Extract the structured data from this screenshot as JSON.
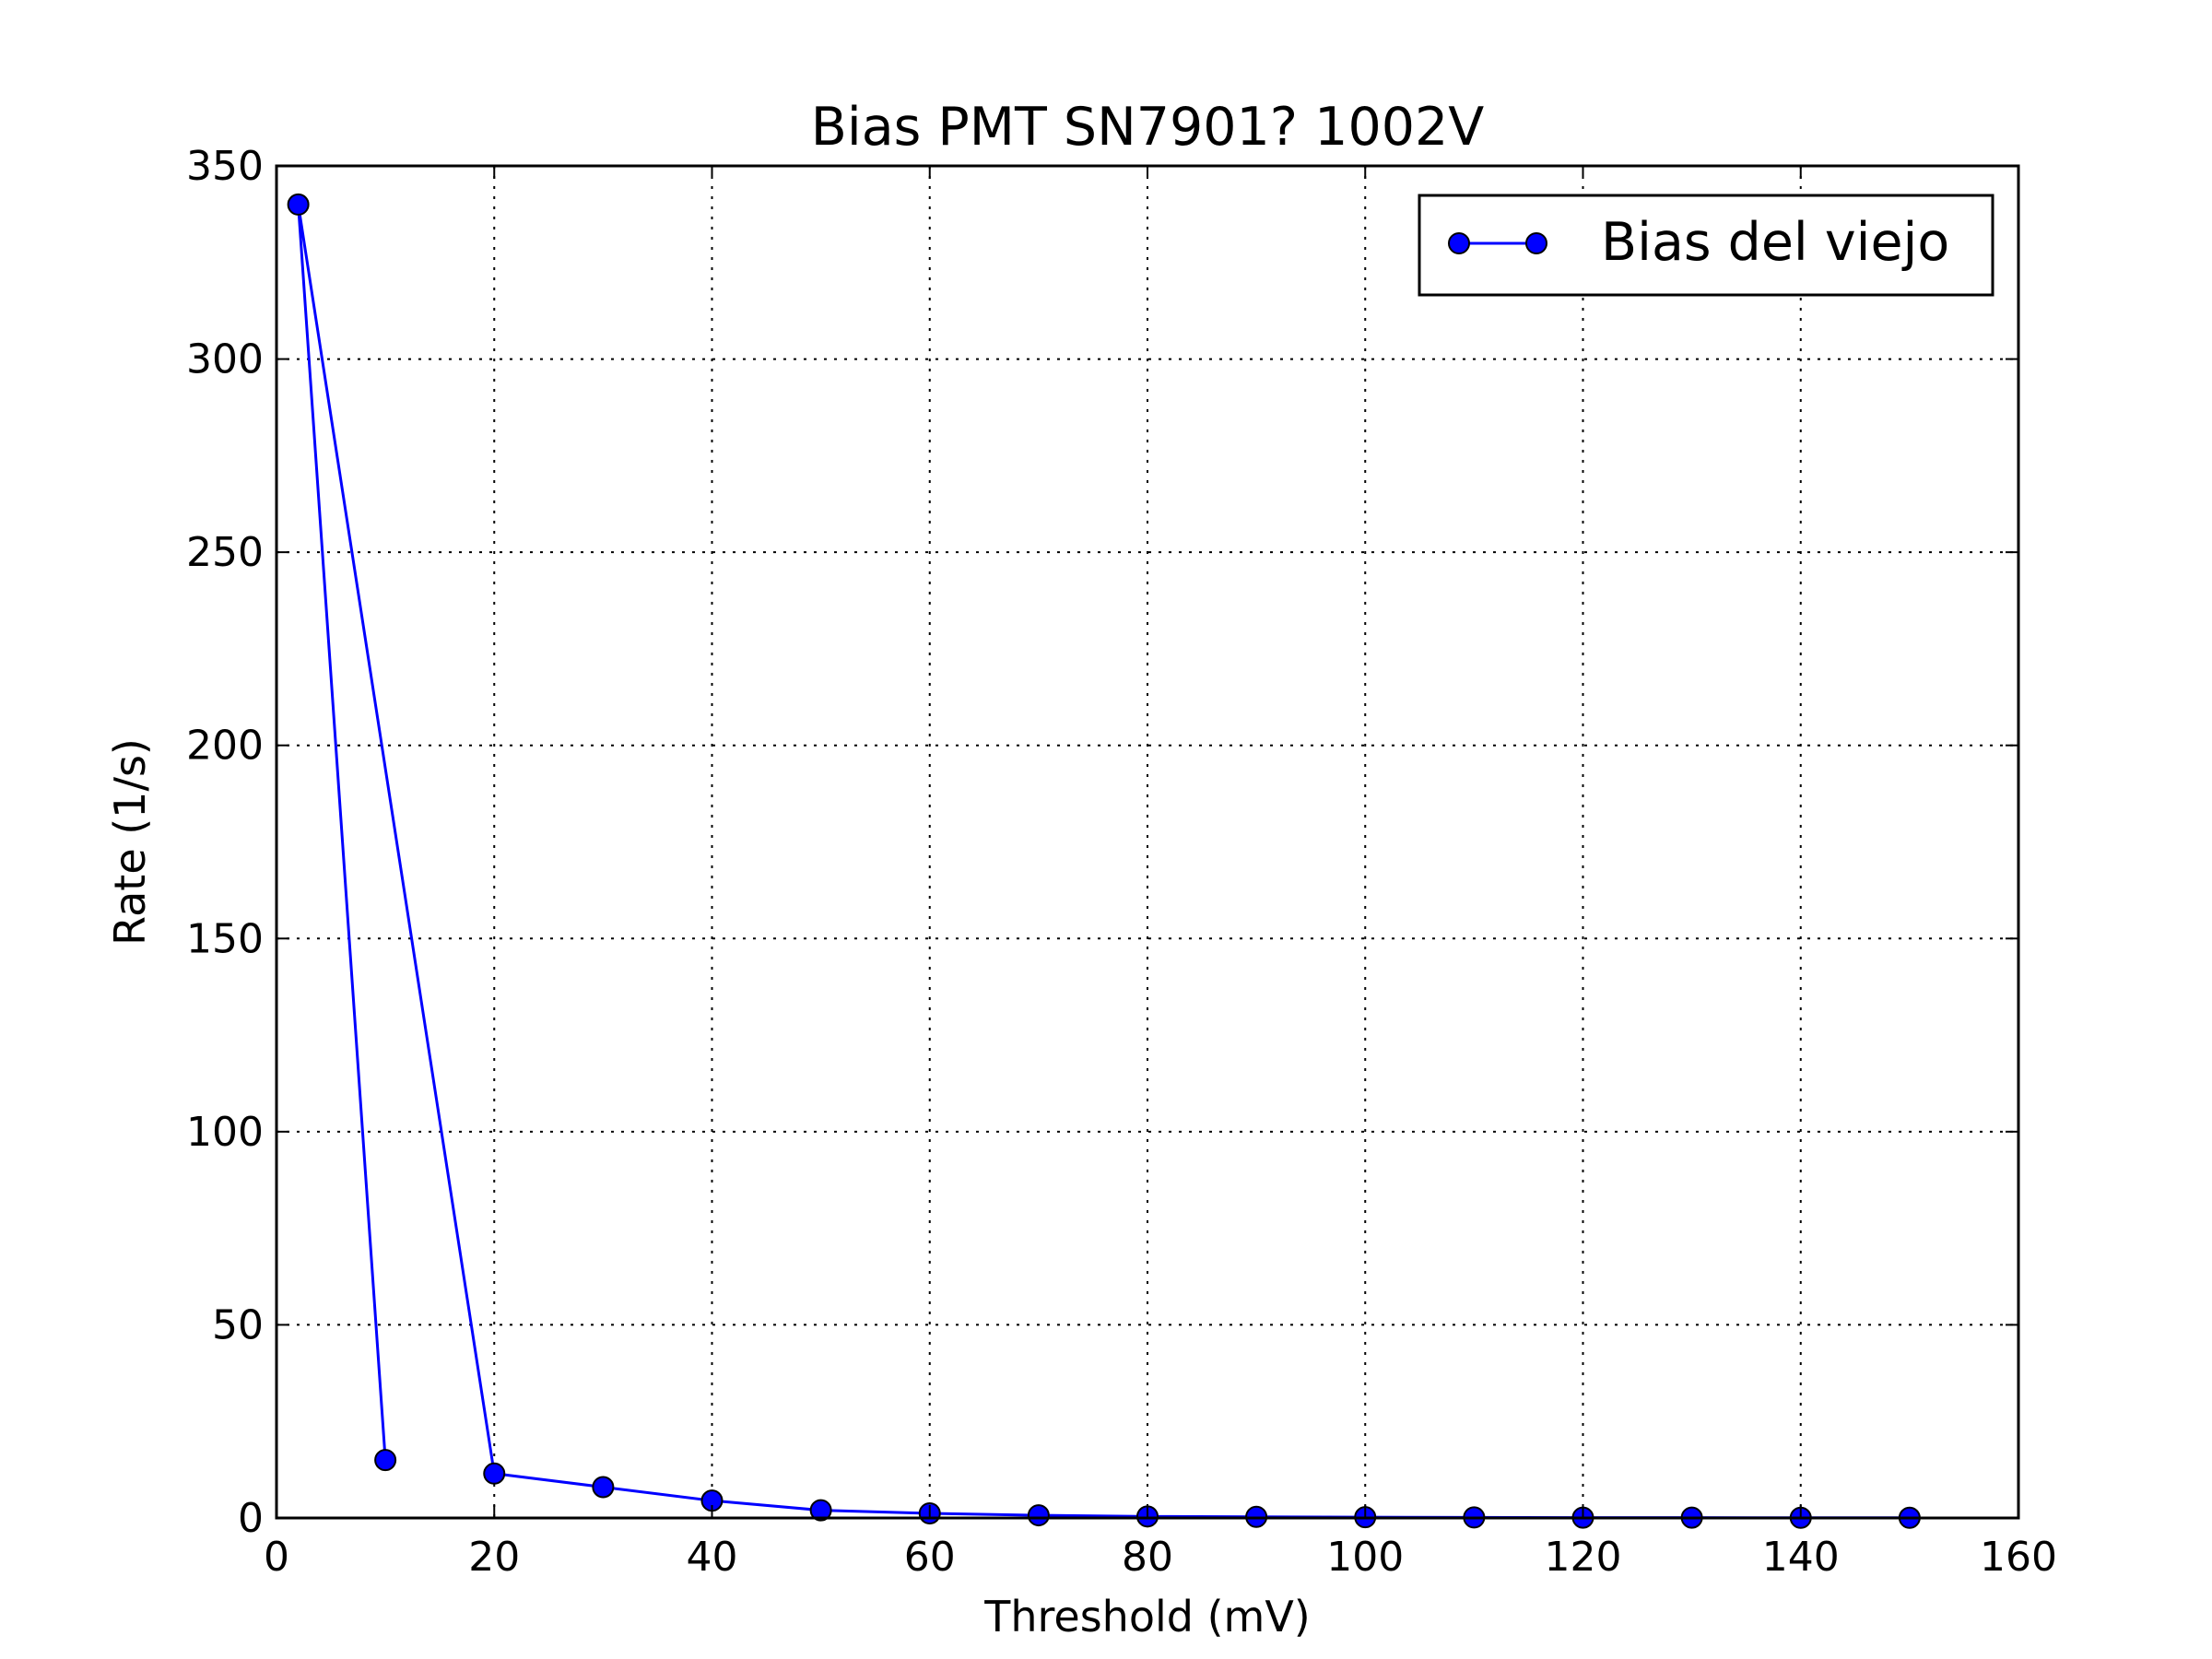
{
  "chart_data": {
    "type": "line",
    "title": "Bias PMT SN7901? 1002V",
    "xlabel": "Threshold (mV)",
    "ylabel": "Rate (1/s)",
    "xlim": [
      0,
      160
    ],
    "ylim": [
      0,
      350
    ],
    "xticks": [
      0,
      20,
      40,
      60,
      80,
      100,
      120,
      140,
      160
    ],
    "yticks": [
      0,
      50,
      100,
      150,
      200,
      250,
      300,
      350
    ],
    "grid": true,
    "legend_position": "top-right",
    "series": [
      {
        "name": "Bias del viejo",
        "color": "#0000ff",
        "marker": "circle",
        "x": [
          10,
          2,
          20,
          30,
          40,
          50,
          60,
          70,
          80,
          90,
          100,
          110,
          120,
          130,
          140,
          150
        ],
        "y": [
          15,
          340,
          11.5,
          8,
          4.5,
          2,
          1.2,
          0.7,
          0.4,
          0.3,
          0.2,
          0.15,
          0.1,
          0.1,
          0.05,
          0.05
        ]
      }
    ]
  }
}
